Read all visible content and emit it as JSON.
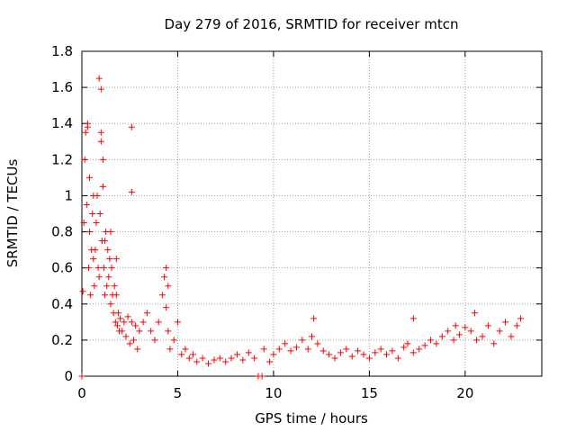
{
  "chart_data": {
    "type": "scatter",
    "title": "Day 279 of 2016, SRMTID for receiver mtcn",
    "xlabel": "GPS time / hours",
    "ylabel": "SRMTID / TECUs",
    "xlim": [
      0,
      24
    ],
    "ylim": [
      0,
      1.8
    ],
    "xticks": [
      0,
      5,
      10,
      15,
      20
    ],
    "xtick_labels": [
      "0",
      "5",
      "10",
      "15",
      "20"
    ],
    "yticks": [
      0,
      0.2,
      0.4,
      0.6,
      0.8,
      1.0,
      1.2,
      1.4,
      1.6,
      1.8
    ],
    "ytick_labels": [
      "0",
      "0.2",
      "0.4",
      "0.6",
      "0.8",
      "1",
      "1.2",
      "1.4",
      "1.6",
      "1.8"
    ],
    "grid": true,
    "marker": "plus",
    "series": [
      {
        "name": "SRMTID",
        "color": "#ff0000",
        "x": [
          0.05,
          0.1,
          0.15,
          0.2,
          0.25,
          0.3,
          0.35,
          0.4,
          0.45,
          0.5,
          0.55,
          0.6,
          0.65,
          0.7,
          0.75,
          0.8,
          0.85,
          0.9,
          0.95,
          1.0,
          1.05,
          1.1,
          1.15,
          1.2,
          1.25,
          1.3,
          1.35,
          1.4,
          1.45,
          1.5,
          1.55,
          1.6,
          1.65,
          1.7,
          1.75,
          1.8,
          1.85,
          1.9,
          1.95,
          2.0,
          2.1,
          2.2,
          2.3,
          2.4,
          2.5,
          2.6,
          2.7,
          2.8,
          2.9,
          3.0,
          3.2,
          3.4,
          3.6,
          3.8,
          4.0,
          4.2,
          4.3,
          4.4,
          4.5,
          4.6,
          4.8,
          5.0,
          5.2,
          5.4,
          5.6,
          5.8,
          6.0,
          6.3,
          6.6,
          6.9,
          7.2,
          7.5,
          7.8,
          8.1,
          8.4,
          8.7,
          9.0,
          9.5,
          9.8,
          10.0,
          10.3,
          10.6,
          10.9,
          11.2,
          11.5,
          11.8,
          12.0,
          12.3,
          12.6,
          12.9,
          13.2,
          13.5,
          13.8,
          14.1,
          14.4,
          14.7,
          15.0,
          15.3,
          15.6,
          15.9,
          16.2,
          16.5,
          16.8,
          17.0,
          17.3,
          17.6,
          17.9,
          18.2,
          18.5,
          18.8,
          19.1,
          19.4,
          19.7,
          20.0,
          20.3,
          20.6,
          20.9,
          21.2,
          21.5,
          21.8,
          22.1,
          22.4,
          22.7,
          22.9,
          0.3,
          0.4,
          0.6,
          0.9,
          1.0,
          1.0,
          1.1,
          1.2,
          1.5,
          1.8,
          2.6,
          2.6,
          4.4,
          4.5,
          12.1,
          17.3,
          19.5,
          20.5,
          0.0,
          9.2,
          9.4
        ],
        "values": [
          0.47,
          0.85,
          1.2,
          1.35,
          0.95,
          1.4,
          0.6,
          0.8,
          0.45,
          0.7,
          0.9,
          0.65,
          0.5,
          0.7,
          0.85,
          1.0,
          0.6,
          0.55,
          0.9,
          1.3,
          0.75,
          1.05,
          0.6,
          0.45,
          0.8,
          0.5,
          0.7,
          0.55,
          0.65,
          0.4,
          0.6,
          0.45,
          0.35,
          0.5,
          0.3,
          0.45,
          0.28,
          0.35,
          0.25,
          0.32,
          0.25,
          0.3,
          0.22,
          0.33,
          0.18,
          0.3,
          0.2,
          0.28,
          0.15,
          0.25,
          0.3,
          0.35,
          0.25,
          0.2,
          0.3,
          0.45,
          0.55,
          0.38,
          0.25,
          0.15,
          0.2,
          0.3,
          0.12,
          0.15,
          0.1,
          0.12,
          0.08,
          0.1,
          0.07,
          0.09,
          0.1,
          0.08,
          0.1,
          0.12,
          0.09,
          0.13,
          0.1,
          0.15,
          0.08,
          0.12,
          0.15,
          0.18,
          0.14,
          0.16,
          0.2,
          0.15,
          0.22,
          0.18,
          0.14,
          0.12,
          0.1,
          0.13,
          0.15,
          0.11,
          0.14,
          0.12,
          0.1,
          0.13,
          0.15,
          0.12,
          0.14,
          0.1,
          0.16,
          0.18,
          0.13,
          0.15,
          0.17,
          0.2,
          0.18,
          0.22,
          0.25,
          0.2,
          0.23,
          0.27,
          0.25,
          0.2,
          0.22,
          0.28,
          0.18,
          0.25,
          0.3,
          0.22,
          0.28,
          0.32,
          1.38,
          1.1,
          1.0,
          1.65,
          1.59,
          1.35,
          1.2,
          0.75,
          0.8,
          0.65,
          1.38,
          1.02,
          0.6,
          0.5,
          0.32,
          0.32,
          0.28,
          0.35,
          0.0,
          0.0,
          0.0
        ]
      }
    ]
  }
}
